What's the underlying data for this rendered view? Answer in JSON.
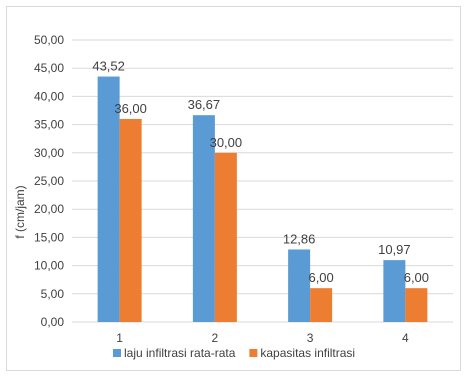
{
  "colors": {
    "series1": "#5b9bd5",
    "series2": "#ed7d31",
    "grid": "#d9d9d9",
    "text": "#404040"
  },
  "chart_data": {
    "type": "bar",
    "title": "",
    "xlabel": "",
    "ylabel": "f (cm/jam)",
    "categories": [
      "1",
      "2",
      "3",
      "4"
    ],
    "ylim": [
      0,
      50
    ],
    "yticks": [
      "0,00",
      "5,00",
      "10,00",
      "15,00",
      "20,00",
      "25,00",
      "30,00",
      "35,00",
      "40,00",
      "45,00",
      "50,00"
    ],
    "grid": true,
    "legend": "bottom",
    "series": [
      {
        "name": "laju infiltrasi rata-rata",
        "values": [
          43.52,
          36.67,
          12.86,
          10.97
        ],
        "labels": [
          "43,52",
          "36,67",
          "12,86",
          "10,97"
        ]
      },
      {
        "name": "kapasitas infiltrasi",
        "values": [
          36.0,
          30.0,
          6.0,
          6.0
        ],
        "labels": [
          "36,00",
          "30,00",
          "6,00",
          "6,00"
        ]
      }
    ]
  }
}
